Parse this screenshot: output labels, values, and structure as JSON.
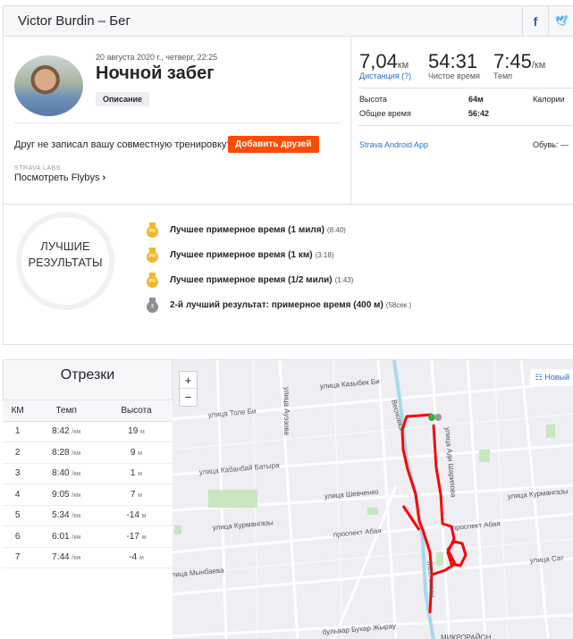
{
  "header": {
    "title": "Victor Burdin – Бег",
    "social": [
      {
        "icon": "facebook-icon",
        "glyph": "f",
        "color": "#3b5998"
      },
      {
        "icon": "twitter-icon",
        "glyph": "🐦",
        "color": "#55acee"
      }
    ]
  },
  "activity": {
    "date": "20 августа 2020 г., четверг, 22:25",
    "title": "Ночной забег",
    "description_button": "Описание",
    "friend_prompt": "Друг не записал вашу совместную тренировку?",
    "add_friends": "Добавить друзей",
    "labs": "STRAVA LABS",
    "flybys": "Посмотреть Flybys",
    "flybys_arrow": "›"
  },
  "stats": {
    "distance": {
      "value": "7,04",
      "unit": "км",
      "label": "Дистанция (?)"
    },
    "moving_time": {
      "value": "54:31",
      "label": "Чистое время"
    },
    "pace": {
      "value": "7:45",
      "unit": "/км",
      "label": "Темп"
    },
    "elevation_label": "Высота",
    "elevation": "64м",
    "calories_label": "Калории",
    "elapsed_label": "Общее время",
    "elapsed": "56:42",
    "device": "Strava Android App",
    "shoes_label": "Обувь:",
    "shoes": "—"
  },
  "achievements": {
    "title": "ЛУЧШИЕ РЕЗУЛЬТАТЫ",
    "items": [
      {
        "text": "Лучшее примерное время (1 миля)",
        "time": "(8:40)",
        "medal": "PR",
        "color": "#f4b72a"
      },
      {
        "text": "Лучшее примерное время (1 км)",
        "time": "(3:18)",
        "medal": "PR",
        "color": "#f4b72a"
      },
      {
        "text": "Лучшее примерное время (1/2 мили)",
        "time": "(1:43)",
        "medal": "PR",
        "color": "#f4b72a"
      },
      {
        "text": "2-й лучший результат: примерное время (400 м)",
        "time": "(58сек.)",
        "medal": "2",
        "color": "#8e8e93"
      }
    ]
  },
  "splits": {
    "title": "Отрезки",
    "columns": [
      "КМ",
      "Темп",
      "Высота"
    ],
    "pace_unit": "/км",
    "elev_unit": "м",
    "rows": [
      {
        "km": "1",
        "pace": "8:42",
        "elev": "19"
      },
      {
        "km": "2",
        "pace": "8:28",
        "elev": "9"
      },
      {
        "km": "3",
        "pace": "8:40",
        "elev": "1"
      },
      {
        "km": "4",
        "pace": "9:05",
        "elev": "7"
      },
      {
        "km": "5",
        "pace": "5:34",
        "elev": "-14"
      },
      {
        "km": "6",
        "pace": "6:01",
        "elev": "-17"
      },
      {
        "km": "7",
        "pace": "7:44",
        "elev": "-4"
      }
    ]
  },
  "map": {
    "zoom_in": "+",
    "zoom_out": "−",
    "new_button": "Новый",
    "route_color": "#ff0000",
    "streets": [
      "улица Казыбек Би",
      "улица Толе Би",
      "улица Ауэзова",
      "улица Кабанбай Батыра",
      "улица Шевченко",
      "улица Курмангазы",
      "проспект Абая",
      "улица Мынбаева",
      "бульвар Бухар Жырау",
      "улица Курмангазы",
      "проспект Абая",
      "улица Сат",
      "улица Ади Шарипова",
      "Желтоксан",
      "Весновка",
      "МИКРОРАЙОН"
    ]
  }
}
